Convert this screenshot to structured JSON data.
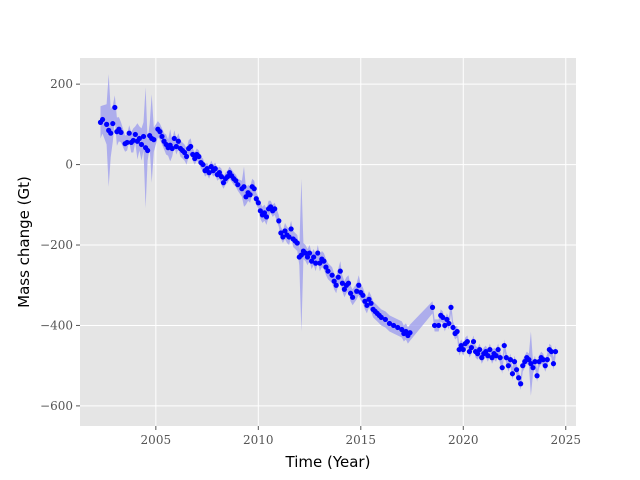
{
  "chart_data": {
    "type": "scatter",
    "title": "",
    "xlabel": "Time (Year)",
    "ylabel": "Mass change (Gt)",
    "xlim": [
      2001.3,
      2025.5
    ],
    "ylim": [
      -650,
      265
    ],
    "xticks": [
      2005,
      2010,
      2015,
      2020,
      2025
    ],
    "xtick_labels": [
      "2005",
      "2010",
      "2015",
      "2020",
      "2025"
    ],
    "yticks": [
      -600,
      -400,
      -200,
      0,
      200
    ],
    "ytick_labels": [
      "−600",
      "−400",
      "−200",
      "0",
      "200"
    ],
    "grid": true,
    "legend": "none",
    "colors": {
      "background": "#e5e5e5",
      "grid": "#ffffff",
      "points": "#0000ff",
      "band": "#9999ee"
    },
    "series": [
      {
        "kind": "points_with_uncertainty_band",
        "points": [
          [
            2002.3,
            105,
            40
          ],
          [
            2002.4,
            112,
            35
          ],
          [
            2002.6,
            100,
            50
          ],
          [
            2002.7,
            85,
            140
          ],
          [
            2002.8,
            78,
            60
          ],
          [
            2002.9,
            102,
            45
          ],
          [
            2003.0,
            142,
            30
          ],
          [
            2003.1,
            82,
            35
          ],
          [
            2003.2,
            88,
            30
          ],
          [
            2003.3,
            80,
            25
          ],
          [
            2003.5,
            52,
            20
          ],
          [
            2003.6,
            55,
            20
          ],
          [
            2003.7,
            78,
            20
          ],
          [
            2003.8,
            55,
            25
          ],
          [
            2003.9,
            60,
            30
          ],
          [
            2004.0,
            75,
            20
          ],
          [
            2004.1,
            58,
            45
          ],
          [
            2004.2,
            65,
            30
          ],
          [
            2004.3,
            50,
            40
          ],
          [
            2004.4,
            70,
            35
          ],
          [
            2004.5,
            42,
            150
          ],
          [
            2004.6,
            35,
            25
          ],
          [
            2004.7,
            72,
            30
          ],
          [
            2004.8,
            65,
            110
          ],
          [
            2004.9,
            62,
            30
          ],
          [
            2005.1,
            88,
            20
          ],
          [
            2005.2,
            82,
            20
          ],
          [
            2005.3,
            70,
            20
          ],
          [
            2005.4,
            58,
            20
          ],
          [
            2005.5,
            50,
            25
          ],
          [
            2005.6,
            42,
            20
          ],
          [
            2005.7,
            48,
            40
          ],
          [
            2005.8,
            40,
            20
          ],
          [
            2005.9,
            65,
            20
          ],
          [
            2006.0,
            45,
            20
          ],
          [
            2006.1,
            58,
            20
          ],
          [
            2006.2,
            40,
            20
          ],
          [
            2006.3,
            35,
            20
          ],
          [
            2006.4,
            30,
            20
          ],
          [
            2006.5,
            20,
            20
          ],
          [
            2006.6,
            40,
            20
          ],
          [
            2006.7,
            45,
            20
          ],
          [
            2006.8,
            25,
            15
          ],
          [
            2006.9,
            15,
            15
          ],
          [
            2007.0,
            25,
            15
          ],
          [
            2007.1,
            20,
            15
          ],
          [
            2007.2,
            5,
            15
          ],
          [
            2007.3,
            0,
            15
          ],
          [
            2007.4,
            -15,
            15
          ],
          [
            2007.5,
            -10,
            15
          ],
          [
            2007.6,
            -20,
            15
          ],
          [
            2007.7,
            -5,
            15
          ],
          [
            2007.8,
            -15,
            15
          ],
          [
            2007.9,
            -10,
            15
          ],
          [
            2008.0,
            -25,
            15
          ],
          [
            2008.1,
            -20,
            15
          ],
          [
            2008.2,
            -30,
            20
          ],
          [
            2008.3,
            -45,
            15
          ],
          [
            2008.4,
            -35,
            15
          ],
          [
            2008.5,
            -30,
            15
          ],
          [
            2008.6,
            -20,
            15
          ],
          [
            2008.7,
            -28,
            15
          ],
          [
            2008.8,
            -35,
            15
          ],
          [
            2008.9,
            -40,
            15
          ],
          [
            2009.0,
            -50,
            15
          ],
          [
            2009.2,
            -60,
            20
          ],
          [
            2009.3,
            -55,
            50
          ],
          [
            2009.4,
            -80,
            20
          ],
          [
            2009.5,
            -70,
            20
          ],
          [
            2009.6,
            -75,
            20
          ],
          [
            2009.7,
            -55,
            20
          ],
          [
            2009.8,
            -60,
            20
          ],
          [
            2009.9,
            -85,
            15
          ],
          [
            2010.0,
            -95,
            15
          ],
          [
            2010.1,
            -115,
            20
          ],
          [
            2010.2,
            -125,
            20
          ],
          [
            2010.3,
            -120,
            20
          ],
          [
            2010.4,
            -130,
            20
          ],
          [
            2010.5,
            -110,
            20
          ],
          [
            2010.6,
            -105,
            15
          ],
          [
            2010.7,
            -115,
            15
          ],
          [
            2010.8,
            -110,
            15
          ],
          [
            2011.0,
            -140,
            15
          ],
          [
            2011.1,
            -170,
            15
          ],
          [
            2011.2,
            -180,
            15
          ],
          [
            2011.3,
            -165,
            20
          ],
          [
            2011.4,
            -175,
            20
          ],
          [
            2011.5,
            -180,
            20
          ],
          [
            2011.6,
            -160,
            20
          ],
          [
            2011.7,
            -185,
            20
          ],
          [
            2011.8,
            -190,
            20
          ],
          [
            2011.9,
            -195,
            20
          ],
          [
            2012.0,
            -230,
            20
          ],
          [
            2012.1,
            -225,
            190
          ],
          [
            2012.2,
            -215,
            20
          ],
          [
            2012.3,
            -220,
            20
          ],
          [
            2012.4,
            -230,
            20
          ],
          [
            2012.5,
            -220,
            20
          ],
          [
            2012.6,
            -240,
            20
          ],
          [
            2012.7,
            -230,
            20
          ],
          [
            2012.8,
            -245,
            20
          ],
          [
            2012.9,
            -220,
            20
          ],
          [
            2013.0,
            -245,
            20
          ],
          [
            2013.1,
            -235,
            20
          ],
          [
            2013.2,
            -240,
            20
          ],
          [
            2013.3,
            -255,
            20
          ],
          [
            2013.4,
            -265,
            20
          ],
          [
            2013.6,
            -275,
            20
          ],
          [
            2013.7,
            -290,
            20
          ],
          [
            2013.8,
            -300,
            20
          ],
          [
            2013.9,
            -280,
            20
          ],
          [
            2014.0,
            -265,
            25
          ],
          [
            2014.1,
            -295,
            20
          ],
          [
            2014.2,
            -310,
            20
          ],
          [
            2014.3,
            -300,
            20
          ],
          [
            2014.4,
            -295,
            20
          ],
          [
            2014.5,
            -320,
            20
          ],
          [
            2014.6,
            -330,
            20
          ],
          [
            2014.8,
            -315,
            20
          ],
          [
            2014.9,
            -300,
            25
          ],
          [
            2015.0,
            -318,
            20
          ],
          [
            2015.1,
            -325,
            20
          ],
          [
            2015.2,
            -340,
            20
          ],
          [
            2015.3,
            -350,
            20
          ],
          [
            2015.4,
            -335,
            20
          ],
          [
            2015.5,
            -345,
            20
          ],
          [
            2015.6,
            -360,
            20
          ],
          [
            2015.7,
            -365,
            20
          ],
          [
            2015.8,
            -370,
            20
          ],
          [
            2015.9,
            -375,
            20
          ],
          [
            2016.0,
            -380,
            20
          ],
          [
            2016.2,
            -385,
            20
          ],
          [
            2016.4,
            -395,
            20
          ],
          [
            2016.6,
            -400,
            20
          ],
          [
            2016.8,
            -405,
            20
          ],
          [
            2017.0,
            -410,
            20
          ],
          [
            2017.1,
            -420,
            20
          ],
          [
            2017.2,
            -415,
            20
          ],
          [
            2017.3,
            -425,
            20
          ],
          [
            2017.4,
            -418,
            20
          ],
          [
            2018.5,
            -355,
            15
          ],
          [
            2018.6,
            -400,
            15
          ],
          [
            2018.8,
            -400,
            15
          ],
          [
            2018.9,
            -375,
            15
          ],
          [
            2019.0,
            -380,
            15
          ],
          [
            2019.1,
            -400,
            15
          ],
          [
            2019.2,
            -385,
            15
          ],
          [
            2019.3,
            -395,
            15
          ],
          [
            2019.4,
            -355,
            15
          ],
          [
            2019.5,
            -405,
            15
          ],
          [
            2019.6,
            -420,
            15
          ],
          [
            2019.7,
            -415,
            15
          ],
          [
            2019.8,
            -460,
            15
          ],
          [
            2019.9,
            -450,
            15
          ],
          [
            2020.0,
            -460,
            15
          ],
          [
            2020.1,
            -445,
            15
          ],
          [
            2020.2,
            -440,
            15
          ],
          [
            2020.3,
            -465,
            15
          ],
          [
            2020.4,
            -455,
            15
          ],
          [
            2020.5,
            -440,
            15
          ],
          [
            2020.6,
            -465,
            15
          ],
          [
            2020.7,
            -470,
            15
          ],
          [
            2020.8,
            -460,
            15
          ],
          [
            2020.9,
            -480,
            15
          ],
          [
            2021.0,
            -470,
            15
          ],
          [
            2021.1,
            -465,
            15
          ],
          [
            2021.2,
            -475,
            15
          ],
          [
            2021.3,
            -460,
            15
          ],
          [
            2021.4,
            -480,
            15
          ],
          [
            2021.5,
            -470,
            15
          ],
          [
            2021.6,
            -475,
            15
          ],
          [
            2021.7,
            -460,
            15
          ],
          [
            2021.8,
            -480,
            15
          ],
          [
            2021.9,
            -505,
            15
          ],
          [
            2022.0,
            -450,
            15
          ],
          [
            2022.1,
            -480,
            15
          ],
          [
            2022.2,
            -500,
            15
          ],
          [
            2022.3,
            -485,
            15
          ],
          [
            2022.4,
            -520,
            15
          ],
          [
            2022.5,
            -490,
            15
          ],
          [
            2022.6,
            -510,
            15
          ],
          [
            2022.7,
            -530,
            15
          ],
          [
            2022.8,
            -545,
            15
          ],
          [
            2022.9,
            -500,
            15
          ],
          [
            2023.0,
            -490,
            15
          ],
          [
            2023.1,
            -480,
            15
          ],
          [
            2023.2,
            -485,
            15
          ],
          [
            2023.3,
            -495,
            80
          ],
          [
            2023.4,
            -505,
            15
          ],
          [
            2023.5,
            -490,
            15
          ],
          [
            2023.6,
            -525,
            15
          ],
          [
            2023.7,
            -490,
            15
          ],
          [
            2023.8,
            -480,
            15
          ],
          [
            2023.9,
            -485,
            15
          ],
          [
            2024.0,
            -500,
            15
          ],
          [
            2024.1,
            -485,
            15
          ],
          [
            2024.2,
            -460,
            15
          ],
          [
            2024.3,
            -465,
            15
          ],
          [
            2024.4,
            -495,
            15
          ],
          [
            2024.5,
            -465,
            15
          ]
        ]
      }
    ]
  }
}
